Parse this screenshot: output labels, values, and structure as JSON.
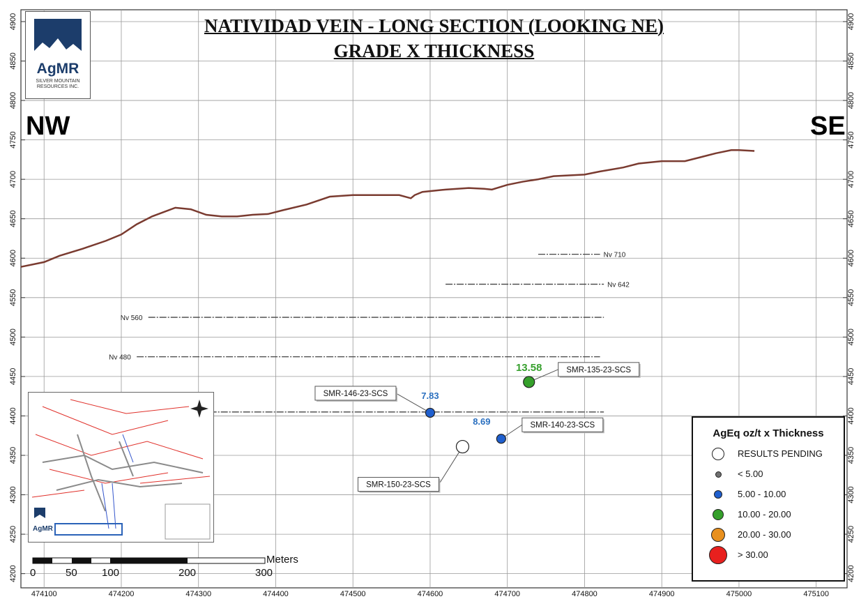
{
  "title_line1": "NATIVIDAD VEIN - LONG SECTION (LOOKING NE)",
  "title_line2": "GRADE X THICKNESS",
  "direction_left": "NW",
  "direction_right": "SE",
  "logo": {
    "name": "AgMR",
    "subtitle": "SILVER MOUNTAIN RESOURCES INC."
  },
  "inset_logo": {
    "name": "AgMR"
  },
  "axes": {
    "y_ticks": [
      4900,
      4850,
      4800,
      4750,
      4700,
      4650,
      4600,
      4550,
      4500,
      4450,
      4400,
      4350,
      4300,
      4250,
      4200
    ],
    "x_ticks": [
      474100,
      474200,
      474300,
      474400,
      474500,
      474600,
      474700,
      474800,
      474900,
      475000,
      475100
    ],
    "x_range": [
      474070,
      475140
    ],
    "y_range": [
      4182,
      4915
    ]
  },
  "chart_data": {
    "type": "scatter",
    "topography": {
      "x": [
        474070,
        474100,
        474120,
        474150,
        474180,
        474200,
        474220,
        474240,
        474270,
        474290,
        474310,
        474330,
        474350,
        474370,
        474390,
        474410,
        474440,
        474470,
        474500,
        474530,
        474560,
        474575,
        474580,
        474590,
        474620,
        474650,
        474670,
        474680,
        474700,
        474720,
        474740,
        474760,
        474780,
        474800,
        474820,
        474850,
        474870,
        474900,
        474930,
        474950,
        474970,
        474990,
        475000,
        475020
      ],
      "y": [
        4589,
        4595,
        4603,
        4612,
        4622,
        4630,
        4643,
        4653,
        4664,
        4662,
        4655,
        4653,
        4653,
        4655,
        4656,
        4661,
        4668,
        4678,
        4680,
        4680,
        4680,
        4676,
        4680,
        4684,
        4687,
        4689,
        4688,
        4687,
        4693,
        4697,
        4700,
        4704,
        4705,
        4706,
        4710,
        4715,
        4720,
        4723,
        4723,
        4728,
        4733,
        4737,
        4737,
        4736
      ]
    },
    "levels": [
      {
        "name": "Nv 710",
        "x": [
          474740,
          474820
        ],
        "y": 4605
      },
      {
        "name": "Nv 642",
        "x": [
          474620,
          474825
        ],
        "y": 4567
      },
      {
        "name": "Nv 560",
        "x": [
          474235,
          474825
        ],
        "y": 4525
      },
      {
        "name": "Nv 480",
        "x": [
          474220,
          474820
        ],
        "y": 4475
      },
      {
        "name": "",
        "x": [
          474300,
          474825
        ],
        "y": 4405
      }
    ],
    "drill_holes": [
      {
        "name": "SMR-135-23-SCS",
        "x": 474728,
        "y": 4443,
        "value": "13.58",
        "category": "10.00 - 20.00"
      },
      {
        "name": "SMR-146-23-SCS",
        "x": 474600,
        "y": 4404,
        "value": "7.83",
        "category": "5.00 - 10.00"
      },
      {
        "name": "SMR-140-23-SCS",
        "x": 474692,
        "y": 4371,
        "value": "8.69",
        "category": "5.00 - 10.00"
      },
      {
        "name": "SMR-150-23-SCS",
        "x": 474642,
        "y": 4361,
        "value": "",
        "category": "RESULTS PENDING"
      }
    ],
    "grid": true
  },
  "legend": {
    "title": "AgEq oz/t x Thickness",
    "items": [
      {
        "label": "RESULTS PENDING",
        "color": "#ffffff"
      },
      {
        "label": "< 5.00",
        "color": "#707070"
      },
      {
        "label": "5.00 - 10.00",
        "color": "#1f5fce"
      },
      {
        "label": "10.00 - 20.00",
        "color": "#35a02b"
      },
      {
        "label": "20.00 - 30.00",
        "color": "#e8901e"
      },
      {
        "label": "> 30.00",
        "color": "#e8201e"
      }
    ]
  },
  "scale_bar": {
    "unit": "Meters",
    "labels": [
      "0",
      "50",
      "100",
      "200",
      "300"
    ],
    "ticks_m": [
      0,
      50,
      100,
      200,
      300
    ]
  },
  "colors": {
    "topography": "#7a3b30",
    "grid": "#999999",
    "value_blue": "#2a6fbf",
    "value_green": "#37a02e"
  }
}
